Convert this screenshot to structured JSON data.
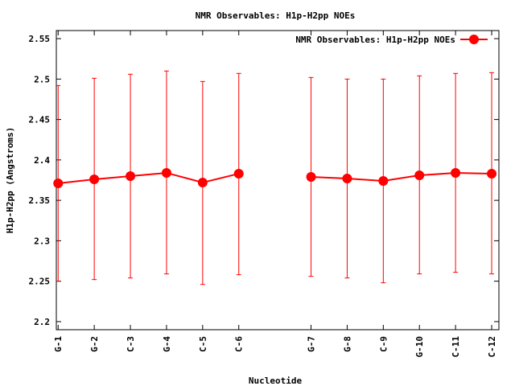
{
  "chart_data": {
    "type": "line",
    "title": "NMR Observables: H1p-H2pp NOEs",
    "xlabel": "Nucleotide",
    "ylabel": "H1p-H2pp (Angstroms)",
    "ylim": [
      2.19,
      2.56
    ],
    "yticks": [
      2.2,
      2.25,
      2.3,
      2.35,
      2.4,
      2.45,
      2.5,
      2.55
    ],
    "ytick_labels": [
      "2.2",
      "2.25",
      "2.3",
      "2.35",
      "2.4",
      "2.45",
      "2.5",
      "2.55"
    ],
    "xlim": [
      0.95,
      13.2
    ],
    "categories": [
      "G-1",
      "G-2",
      "C-3",
      "G-4",
      "C-5",
      "C-6",
      "G-7",
      "G-8",
      "C-9",
      "G-10",
      "C-11",
      "C-12"
    ],
    "x": [
      1,
      2,
      3,
      4,
      5,
      6,
      8,
      9,
      10,
      11,
      12,
      13
    ],
    "grid": false,
    "legend_position": "top-right",
    "series": [
      {
        "name": "NMR Observables: H1p-H2pp NOEs",
        "color": "#ff0000",
        "segments": [
          [
            0,
            5
          ],
          [
            6,
            11
          ]
        ],
        "values": [
          2.371,
          2.376,
          2.38,
          2.384,
          2.372,
          2.383,
          2.379,
          2.377,
          2.374,
          2.381,
          2.384,
          2.383
        ],
        "err_low": [
          2.25,
          2.252,
          2.254,
          2.259,
          2.246,
          2.258,
          2.256,
          2.254,
          2.248,
          2.259,
          2.261,
          2.259
        ],
        "err_high": [
          2.492,
          2.501,
          2.506,
          2.51,
          2.497,
          2.507,
          2.502,
          2.5,
          2.5,
          2.504,
          2.507,
          2.508
        ]
      }
    ]
  }
}
